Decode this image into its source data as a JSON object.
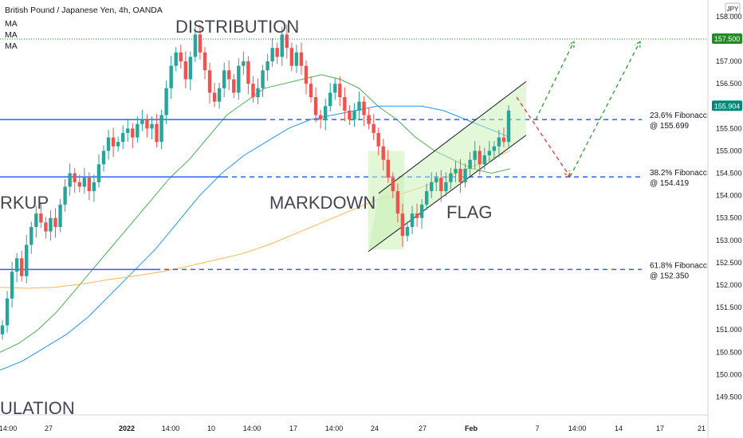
{
  "header": {
    "symbol": "British Pound / Japanese Yen, 4h, OANDA",
    "indicators": [
      "MA",
      "MA",
      "MA"
    ]
  },
  "colors": {
    "up": "#26a69a",
    "down": "#ef5350",
    "fib_line": "#2962ff",
    "ma_fast": "#4caf50",
    "ma_mid": "#2196f3",
    "ma_slow": "#ffb74d",
    "level_dotted": "#1e8c1e",
    "price_tag": "#00897b",
    "flag_fill": "#c8f0b4",
    "bull_path": "#2e9e2e",
    "bear_path": "#e53935"
  },
  "chart_data": {
    "type": "candlestick",
    "currency_badge": "JPY",
    "y_ticks": [
      "158.000",
      "157.500",
      "157.000",
      "156.500",
      "155.904",
      "155.500",
      "155.000",
      "154.500",
      "154.000",
      "153.500",
      "153.000",
      "152.500",
      "152.000",
      "151.500",
      "151.000",
      "150.500",
      "150.000",
      "149.500"
    ],
    "y_tick_values": [
      158.0,
      157.5,
      157.0,
      156.5,
      156.0,
      155.5,
      155.0,
      154.5,
      154.0,
      153.5,
      153.0,
      152.5,
      152.0,
      151.5,
      151.0,
      150.5,
      150.0,
      149.5
    ],
    "ylim": [
      149.1,
      158.3
    ],
    "x_ticks": [
      "14:00",
      "27",
      "2022",
      "14:00",
      "10",
      "14:00",
      "17",
      "14:00",
      "24",
      "27",
      "Feb",
      "7",
      "14:00",
      "14",
      "17",
      "21"
    ],
    "last_price": "155.904",
    "level_price": "157.500",
    "annotations": {
      "distribution": "DISTRIBUTION",
      "markup": "RKUP",
      "markdown": "MARKDOWN",
      "flag": "FLAG",
      "accumulation": "ULATION"
    },
    "fibonacci": [
      {
        "label": "23.6% Fibonacci",
        "value_label": "@ 155.699",
        "value": 155.699
      },
      {
        "label": "38.2% Fibonacci",
        "value_label": "@ 154.419",
        "value": 154.419
      },
      {
        "label": "61.8% Fibonacci",
        "value_label": "@ 152.350",
        "value": 152.35
      }
    ],
    "candle_closes": [
      151.1,
      151.7,
      152.3,
      152.6,
      152.2,
      152.9,
      153.3,
      153.6,
      153.4,
      153.2,
      153.5,
      153.3,
      153.8,
      154.2,
      154.5,
      154.3,
      154.2,
      154.4,
      154.1,
      154.3,
      154.7,
      155.0,
      155.3,
      155.1,
      155.2,
      155.4,
      155.5,
      155.3,
      155.6,
      155.7,
      155.5,
      155.6,
      155.2,
      155.8,
      156.4,
      156.9,
      157.2,
      157.0,
      156.6,
      157.1,
      157.6,
      157.2,
      156.8,
      156.3,
      156.1,
      156.4,
      156.8,
      156.6,
      156.3,
      156.9,
      157.0,
      156.5,
      156.2,
      156.4,
      156.8,
      157.0,
      157.3,
      157.1,
      157.6,
      157.3,
      156.9,
      157.2,
      156.9,
      156.5,
      156.2,
      155.8,
      155.7,
      156.0,
      156.3,
      156.5,
      156.2,
      155.9,
      155.7,
      155.9,
      156.1,
      155.8,
      155.6,
      155.4,
      155.1,
      154.8,
      154.4,
      154.1,
      153.6,
      153.1,
      153.3,
      153.6,
      153.5,
      153.8,
      154.1,
      154.3,
      154.4,
      154.1,
      154.3,
      154.5,
      154.6,
      154.3,
      154.6,
      154.8,
      155.0,
      154.7,
      154.9,
      155.0,
      155.1,
      155.3,
      155.2,
      155.9
    ],
    "ma_fast": [
      150.5,
      150.7,
      151.0,
      151.4,
      151.9,
      152.4,
      152.9,
      153.4,
      153.9,
      154.4,
      154.8,
      155.3,
      155.8,
      156.1,
      156.4,
      156.5,
      156.6,
      156.7,
      156.6,
      156.4,
      156.0,
      155.7,
      155.3,
      155.0,
      154.8,
      154.6,
      154.5,
      154.6
    ],
    "ma_mid": [
      150.1,
      150.3,
      150.6,
      150.9,
      151.3,
      151.8,
      152.3,
      152.8,
      153.4,
      154.0,
      154.5,
      154.9,
      155.2,
      155.5,
      155.7,
      155.8,
      155.9,
      156.0,
      156.0,
      156.0,
      155.9,
      155.7,
      155.5,
      155.3
    ],
    "ma_slow": [
      151.95,
      151.93,
      151.95,
      152.02,
      152.12,
      152.2,
      152.3,
      152.42,
      152.56,
      152.7,
      152.9,
      153.15,
      153.4,
      153.65,
      153.9,
      154.05,
      154.25,
      154.5,
      154.75,
      155.0
    ]
  }
}
